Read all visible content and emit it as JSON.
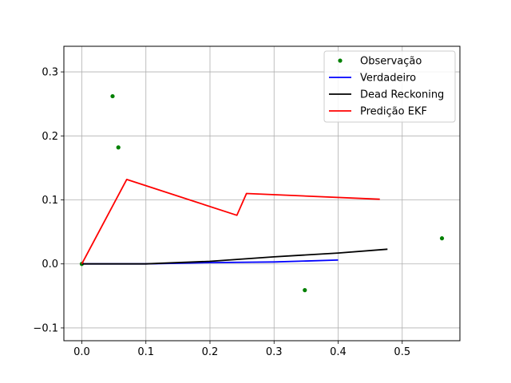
{
  "chart_data": {
    "type": "line",
    "title": "",
    "xlabel": "",
    "ylabel": "",
    "xlim": [
      -0.028,
      0.59
    ],
    "ylim": [
      -0.12,
      0.34
    ],
    "grid": true,
    "legend_position": "top-right",
    "x_ticks": [
      0.0,
      0.1,
      0.2,
      0.3,
      0.4,
      0.5
    ],
    "x_tick_labels": [
      "0.0",
      "0.1",
      "0.2",
      "0.3",
      "0.4",
      "0.5"
    ],
    "y_ticks": [
      -0.1,
      0.0,
      0.1,
      0.2,
      0.3
    ],
    "y_tick_labels": [
      "−0.1",
      "0.0",
      "0.1",
      "0.2",
      "0.3"
    ],
    "series": [
      {
        "name": "Observação",
        "kind": "scatter",
        "color": "#008000",
        "points": [
          [
            0.0,
            0.0
          ],
          [
            0.048,
            0.262
          ],
          [
            0.057,
            0.182
          ],
          [
            0.348,
            -0.041
          ],
          [
            0.562,
            0.04
          ]
        ]
      },
      {
        "name": "Verdadeiro",
        "kind": "line",
        "color": "#0000ff",
        "points": [
          [
            0.0,
            0.0
          ],
          [
            0.1,
            0.0
          ],
          [
            0.2,
            0.002
          ],
          [
            0.3,
            0.003
          ],
          [
            0.4,
            0.006
          ]
        ]
      },
      {
        "name": "Dead Reckoning",
        "kind": "line",
        "color": "#000000",
        "points": [
          [
            0.0,
            0.0
          ],
          [
            0.1,
            0.0
          ],
          [
            0.2,
            0.004
          ],
          [
            0.3,
            0.011
          ],
          [
            0.4,
            0.017
          ],
          [
            0.477,
            0.023
          ]
        ]
      },
      {
        "name": "Predição EKF",
        "kind": "line",
        "color": "#ff0000",
        "points": [
          [
            0.0,
            0.0
          ],
          [
            0.07,
            0.132
          ],
          [
            0.242,
            0.076
          ],
          [
            0.257,
            0.11
          ],
          [
            0.465,
            0.101
          ]
        ]
      }
    ]
  }
}
